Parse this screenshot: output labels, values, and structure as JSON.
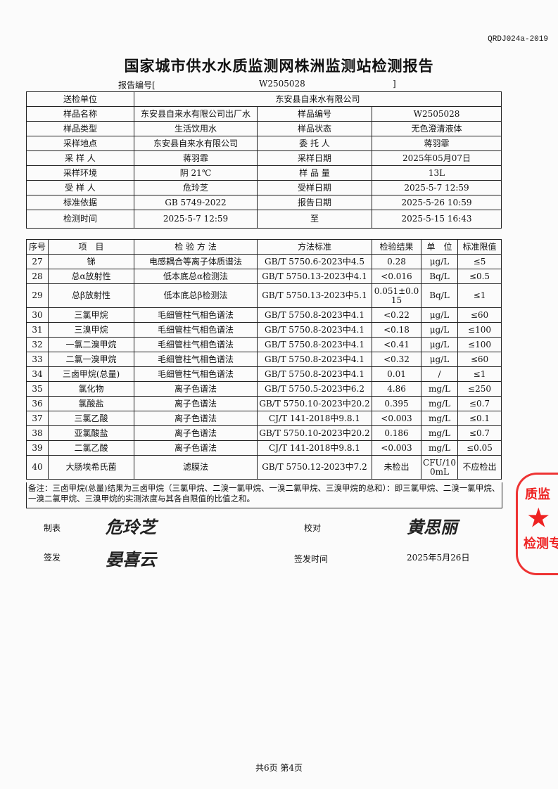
{
  "doc_code": "QRDJ024a-2019",
  "title": "国家城市供水水质监测网株洲监测站检测报告",
  "report_no": {
    "label": "报告编号[",
    "value": "W2505028",
    "close": "]"
  },
  "info": [
    [
      "送检单位",
      "东安县自来水有限公司"
    ],
    [
      "样品名称",
      "东安县自来水有限公司出厂水",
      "样品编号",
      "W2505028"
    ],
    [
      "样品类型",
      "生活饮用水",
      "样品状态",
      "无色澄清液体"
    ],
    [
      "采样地点",
      "东安县自来水有限公司",
      "委 托 人",
      "蒋羽霏"
    ],
    [
      "采 样 人",
      "蒋羽霏",
      "采样日期",
      "2025年05月07日"
    ],
    [
      "采样环境",
      "阴 21℃",
      "样 品 量",
      "13L"
    ],
    [
      "受 样 人",
      "危玲芝",
      "受样日期",
      "2025-5-7 12:59"
    ],
    [
      "标准依据",
      "GB 5749-2022",
      "报告日期",
      "2025-5-26 10:59"
    ]
  ],
  "test_time": {
    "label": "检测时间",
    "start": "2025-5-7 12:59",
    "to": "至",
    "end": "2025-5-15 16:43"
  },
  "columns": [
    "序号",
    "项　目",
    "检 验 方 法",
    "方法标准",
    "检验结果",
    "单　位",
    "标准限值"
  ],
  "rows": [
    [
      "27",
      "锑",
      "电感耦合等离子体质谱法",
      "GB/T 5750.6-2023中4.5",
      "0.28",
      "μg/L",
      "≤5"
    ],
    [
      "28",
      "总α放射性",
      "低本底总α检测法",
      "GB/T 5750.13-2023中4.1",
      "<0.016",
      "Bq/L",
      "≤0.5"
    ],
    [
      "29",
      "总β放射性",
      "低本底总β检测法",
      "GB/T 5750.13-2023中5.1",
      "0.051±0.015",
      "Bq/L",
      "≤1"
    ],
    [
      "30",
      "三氯甲烷",
      "毛细管柱气相色谱法",
      "GB/T 5750.8-2023中4.1",
      "<0.22",
      "μg/L",
      "≤60"
    ],
    [
      "31",
      "三溴甲烷",
      "毛细管柱气相色谱法",
      "GB/T 5750.8-2023中4.1",
      "<0.18",
      "μg/L",
      "≤100"
    ],
    [
      "32",
      "一氯二溴甲烷",
      "毛细管柱气相色谱法",
      "GB/T 5750.8-2023中4.1",
      "<0.41",
      "μg/L",
      "≤100"
    ],
    [
      "33",
      "二氯一溴甲烷",
      "毛细管柱气相色谱法",
      "GB/T 5750.8-2023中4.1",
      "<0.32",
      "μg/L",
      "≤60"
    ],
    [
      "34",
      "三卤甲烷(总量)",
      "毛细管柱气相色谱法",
      "GB/T 5750.8-2023中4.1",
      "0.01",
      "/",
      "≤1"
    ],
    [
      "35",
      "氯化物",
      "离子色谱法",
      "GB/T 5750.5-2023中6.2",
      "4.86",
      "mg/L",
      "≤250"
    ],
    [
      "36",
      "氯酸盐",
      "离子色谱法",
      "GB/T 5750.10-2023中20.2",
      "0.395",
      "mg/L",
      "≤0.7"
    ],
    [
      "37",
      "三氯乙酸",
      "离子色谱法",
      "CJ/T 141-2018中9.8.1",
      "<0.003",
      "mg/L",
      "≤0.1"
    ],
    [
      "38",
      "亚氯酸盐",
      "离子色谱法",
      "GB/T 5750.10-2023中20.2",
      "0.186",
      "mg/L",
      "≤0.7"
    ],
    [
      "39",
      "二氯乙酸",
      "离子色谱法",
      "CJ/T 141-2018中9.8.1",
      "<0.003",
      "mg/L",
      "≤0.05"
    ],
    [
      "40",
      "大肠埃希氏菌",
      "滤膜法",
      "GB/T 5750.12-2023中7.2",
      "未检出",
      "CFU/100mL",
      "不应检出"
    ]
  ],
  "notes": "备注：三卤甲烷(总量)结果为三卤甲烷（三氯甲烷、二溴一氯甲烷、一溴二氯甲烷、三溴甲烷的总和）：即三氯甲烷、二溴一氯甲烷、一溴二氯甲烷、三溴甲烷的实测浓度与其各自限值的比值之和。",
  "signatures": {
    "prepared_label": "制表",
    "prepared_sig": "危玲芝",
    "checked_label": "校对",
    "checked_sig": "黄思丽",
    "issued_label": "签发",
    "issued_sig": "晏喜云",
    "issue_time_label": "签发时间",
    "issue_time": "2025年5月26日"
  },
  "stamp": {
    "text_top": "质监",
    "text_bottom": "检测专",
    "color": "#e22222"
  },
  "footer": "共6页 第4页"
}
